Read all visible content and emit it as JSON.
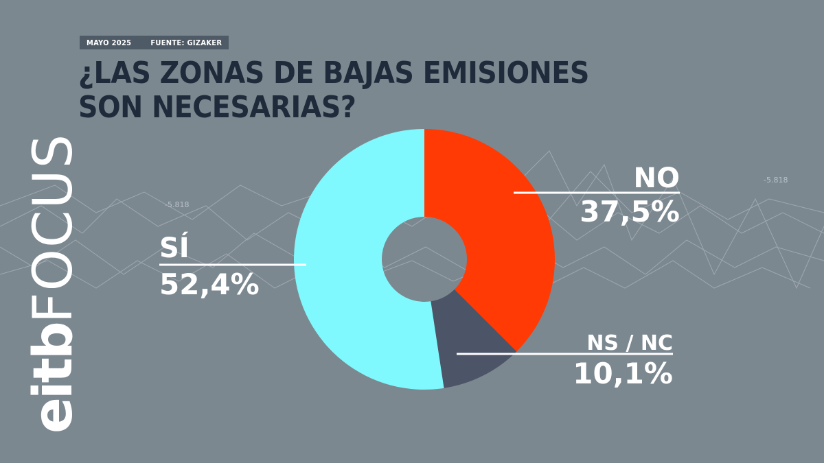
{
  "meta": {
    "date": "MAYO 2025",
    "source": "FUENTE: GIZAKER"
  },
  "title": "¿LAS ZONAS DE BAJAS EMISIONES SON NECESARIAS?",
  "logo": {
    "part1": "eitb",
    "part2": "FOCUS"
  },
  "background": {
    "annotations": [
      "-5.818",
      "-5.818"
    ]
  },
  "colors": {
    "background": "#7c8890",
    "title": "#1f2a3a",
    "meta_bar": "#4e5a66"
  },
  "chart_data": {
    "type": "pie",
    "donut": true,
    "slices": [
      {
        "label": "NO",
        "value": 37.5,
        "display": "37,5%",
        "color": "#ff3a05"
      },
      {
        "label": "NS / NC",
        "value": 10.1,
        "display": "10,1%",
        "color": "#4c5467"
      },
      {
        "label": "SÍ",
        "value": 52.4,
        "display": "52,4%",
        "color": "#7ff9fd"
      }
    ]
  }
}
